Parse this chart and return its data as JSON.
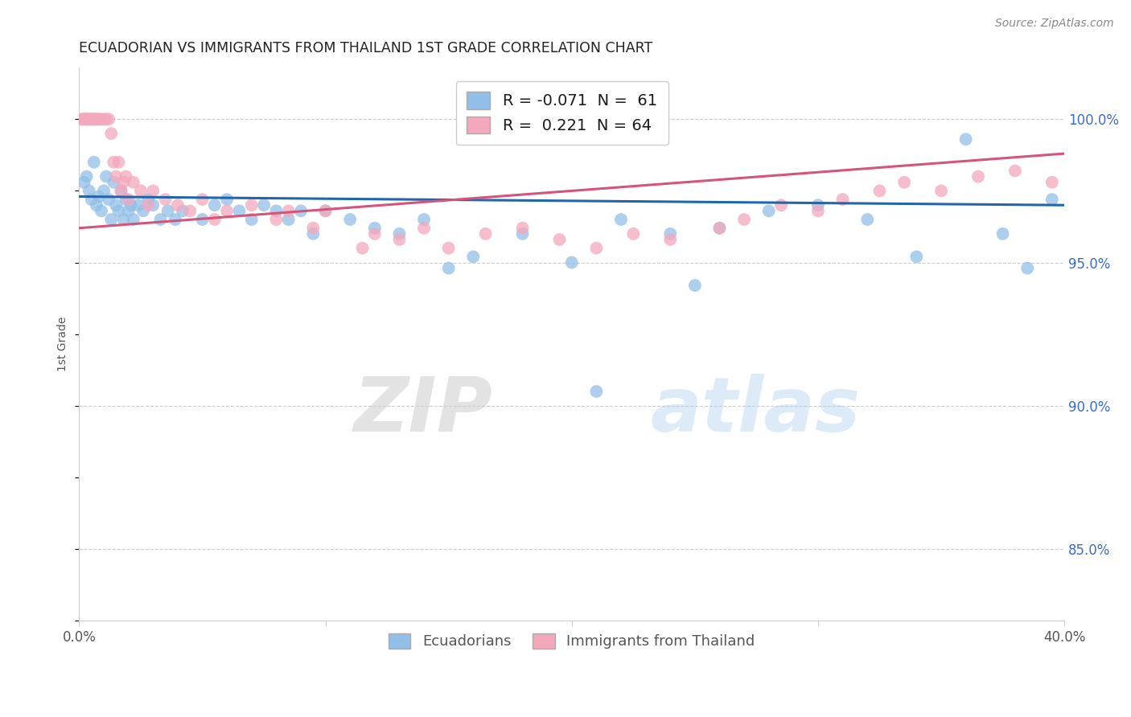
{
  "title": "ECUADORIAN VS IMMIGRANTS FROM THAILAND 1ST GRADE CORRELATION CHART",
  "source": "Source: ZipAtlas.com",
  "ylabel": "1st Grade",
  "y_ticks": [
    85.0,
    90.0,
    95.0,
    100.0
  ],
  "y_tick_labels": [
    "85.0%",
    "90.0%",
    "95.0%",
    "100.0%"
  ],
  "x_range": [
    0.0,
    40.0
  ],
  "y_range": [
    82.5,
    101.8
  ],
  "blue_color": "#92bfe8",
  "pink_color": "#f4a8bc",
  "blue_line_color": "#2166ac",
  "pink_line_color": "#d6537a",
  "watermark_zip": "ZIP",
  "watermark_atlas": "atlas",
  "blue_scatter_x": [
    0.2,
    0.3,
    0.4,
    0.5,
    0.6,
    0.7,
    0.8,
    0.9,
    1.0,
    1.1,
    1.2,
    1.3,
    1.4,
    1.5,
    1.6,
    1.7,
    1.8,
    1.9,
    2.0,
    2.1,
    2.2,
    2.4,
    2.6,
    2.8,
    3.0,
    3.3,
    3.6,
    3.9,
    4.2,
    5.0,
    5.5,
    6.0,
    6.5,
    7.0,
    7.5,
    8.0,
    8.5,
    9.0,
    9.5,
    10.0,
    11.0,
    12.0,
    13.0,
    14.0,
    15.0,
    16.0,
    18.0,
    20.0,
    21.0,
    22.0,
    24.0,
    25.0,
    26.0,
    28.0,
    30.0,
    32.0,
    34.0,
    36.0,
    37.5,
    38.5,
    39.5
  ],
  "blue_scatter_y": [
    97.8,
    98.0,
    97.5,
    97.2,
    98.5,
    97.0,
    97.3,
    96.8,
    97.5,
    98.0,
    97.2,
    96.5,
    97.8,
    97.0,
    96.8,
    97.5,
    96.5,
    97.2,
    96.8,
    97.0,
    96.5,
    97.0,
    96.8,
    97.2,
    97.0,
    96.5,
    96.8,
    96.5,
    96.8,
    96.5,
    97.0,
    97.2,
    96.8,
    96.5,
    97.0,
    96.8,
    96.5,
    96.8,
    96.0,
    96.8,
    96.5,
    96.2,
    96.0,
    96.5,
    94.8,
    95.2,
    96.0,
    95.0,
    90.5,
    96.5,
    96.0,
    94.2,
    96.2,
    96.8,
    97.0,
    96.5,
    95.2,
    99.3,
    96.0,
    94.8,
    97.2
  ],
  "pink_scatter_x": [
    0.1,
    0.15,
    0.2,
    0.25,
    0.3,
    0.35,
    0.4,
    0.45,
    0.5,
    0.55,
    0.6,
    0.65,
    0.7,
    0.75,
    0.8,
    0.9,
    1.0,
    1.1,
    1.2,
    1.3,
    1.4,
    1.5,
    1.6,
    1.7,
    1.8,
    1.9,
    2.0,
    2.2,
    2.5,
    2.8,
    3.0,
    3.5,
    4.0,
    4.5,
    5.0,
    5.5,
    6.0,
    7.0,
    8.0,
    8.5,
    9.5,
    10.0,
    11.5,
    12.0,
    13.0,
    14.0,
    15.0,
    16.5,
    18.0,
    19.5,
    21.0,
    22.5,
    24.0,
    26.0,
    27.0,
    28.5,
    30.0,
    31.0,
    32.5,
    33.5,
    35.0,
    36.5,
    38.0,
    39.5
  ],
  "pink_scatter_y": [
    100.0,
    100.0,
    100.0,
    100.0,
    100.0,
    100.0,
    100.0,
    100.0,
    100.0,
    100.0,
    100.0,
    100.0,
    100.0,
    100.0,
    100.0,
    100.0,
    100.0,
    100.0,
    100.0,
    99.5,
    98.5,
    98.0,
    98.5,
    97.5,
    97.8,
    98.0,
    97.2,
    97.8,
    97.5,
    97.0,
    97.5,
    97.2,
    97.0,
    96.8,
    97.2,
    96.5,
    96.8,
    97.0,
    96.5,
    96.8,
    96.2,
    96.8,
    95.5,
    96.0,
    95.8,
    96.2,
    95.5,
    96.0,
    96.2,
    95.8,
    95.5,
    96.0,
    95.8,
    96.2,
    96.5,
    97.0,
    96.8,
    97.2,
    97.5,
    97.8,
    97.5,
    98.0,
    98.2,
    97.8
  ]
}
